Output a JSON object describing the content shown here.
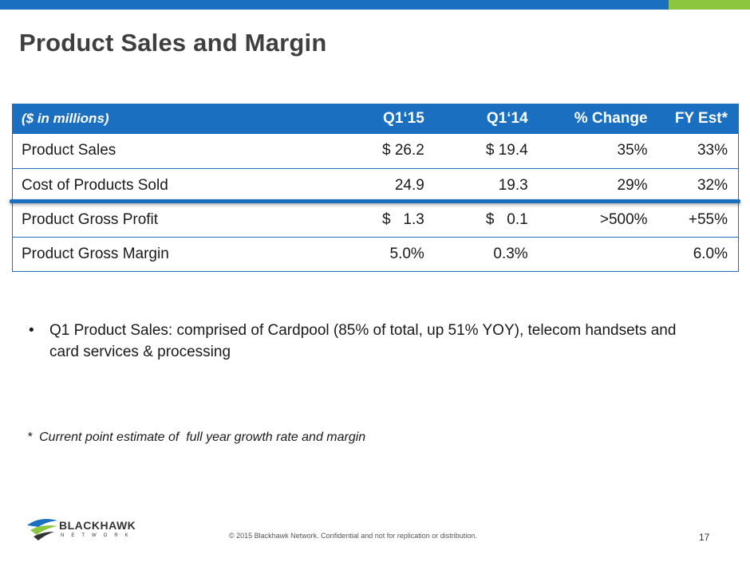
{
  "title": "Product Sales and Margin",
  "colors": {
    "brand_blue": "#1a6fc0",
    "brand_green": "#8cc63f"
  },
  "table": {
    "headers": [
      "($ in millions)",
      "Q1‘15",
      "Q1‘14",
      "% Change",
      "FY Est*"
    ],
    "rows": [
      [
        "Product Sales",
        "$ 26.2",
        "$ 19.4",
        "35%",
        "33%"
      ],
      [
        "Cost of Products Sold",
        "24.9",
        "19.3",
        "29%",
        "32%"
      ],
      [
        "Product Gross Profit",
        "$   1.3",
        "$   0.1",
        ">500%",
        "+55%"
      ],
      [
        "Product Gross Margin",
        "5.0%",
        "0.3%",
        "",
        "6.0%"
      ]
    ]
  },
  "bullets": [
    "Q1 Product Sales:  comprised of Cardpool  (85% of total, up 51% YOY),  telecom handsets and card services & processing"
  ],
  "bullet_icon": "bullet-dot",
  "footnote": "*  Current point estimate of  full year growth rate and margin",
  "footer": {
    "logo_text": "BLACKHAWK",
    "logo_subtext": "NETWORK",
    "copyright": "© 2015 Blackhawk Network. Confidential and not for replication or distribution.",
    "page_number": "17"
  }
}
